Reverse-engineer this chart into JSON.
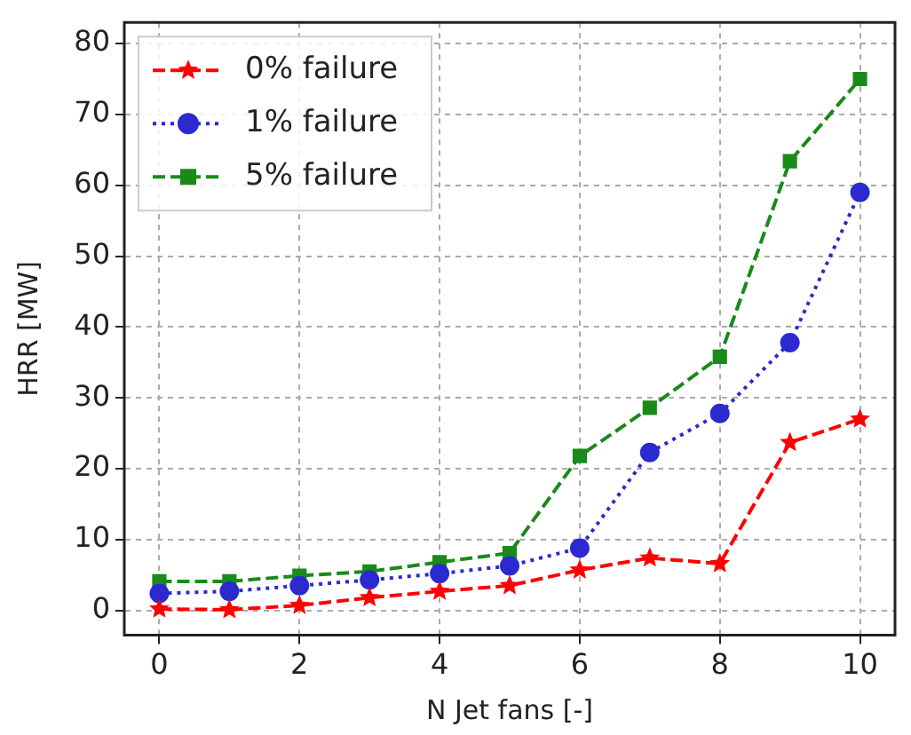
{
  "chart_data": {
    "type": "line",
    "xlabel": "N Jet fans [-]",
    "ylabel": "HRR [MW]",
    "x": [
      0,
      1,
      2,
      3,
      4,
      5,
      6,
      7,
      8,
      9,
      10
    ],
    "series": [
      {
        "name": "0% failure",
        "color": "#ff0000",
        "marker": "star",
        "line_style": "dashed",
        "values": [
          0.2,
          0.1,
          0.7,
          1.8,
          2.7,
          3.5,
          5.7,
          7.4,
          6.6,
          23.7,
          27
        ]
      },
      {
        "name": "1% failure",
        "color": "#2a2ad0",
        "marker": "circle",
        "line_style": "dotted",
        "values": [
          2.4,
          2.7,
          3.5,
          4.3,
          5.2,
          6.3,
          8.8,
          22.3,
          27.8,
          37.8,
          59
        ]
      },
      {
        "name": "5% failure",
        "color": "#1a8a1a",
        "marker": "square",
        "line_style": "dashed",
        "values": [
          4.1,
          4.1,
          4.9,
          5.5,
          6.8,
          8.1,
          21.8,
          28.6,
          35.8,
          63.4,
          75
        ]
      }
    ],
    "xlim": [
      -0.5,
      10.5
    ],
    "xticks": [
      0,
      2,
      4,
      6,
      8,
      10
    ],
    "ylim": [
      -3.5,
      83
    ],
    "yticks": [
      0,
      10,
      20,
      30,
      40,
      50,
      60,
      70,
      80
    ],
    "grid": true,
    "legend": "top left"
  }
}
